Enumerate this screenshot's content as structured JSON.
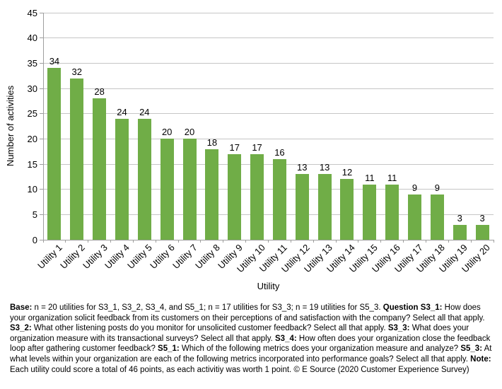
{
  "chart_data": {
    "type": "bar",
    "title": "",
    "categories": [
      "Utility 1",
      "Utility 2",
      "Utility 3",
      "Utility 4",
      "Utility 5",
      "Utility 6",
      "Utility 7",
      "Utility 8",
      "Utility 9",
      "Utility 10",
      "Utility 11",
      "Utility 12",
      "Utility 13",
      "Utility 14",
      "Utility 15",
      "Utility 16",
      "Utility 17",
      "Utility 18",
      "Utility 19",
      "Utility 20"
    ],
    "values": [
      34,
      32,
      28,
      24,
      24,
      20,
      20,
      18,
      17,
      17,
      16,
      13,
      13,
      12,
      11,
      11,
      9,
      9,
      3,
      3
    ],
    "xlabel": "Utility",
    "ylabel": "Number of activities",
    "ylim": [
      0,
      45
    ],
    "ytick_step": 5,
    "grid": true,
    "legend": "none",
    "data_labels": true
  },
  "colors": {
    "bar": "#70AD47",
    "gridline": "#C6C6C6",
    "axis": "#9E9E9E",
    "text": "#000000",
    "background": "#FFFFFF"
  },
  "footnote": {
    "segments": [
      {
        "bold": true,
        "text": "Base:"
      },
      {
        "bold": false,
        "text": " n = 20 utilities for S3_1, S3_2, S3_4, and S5_1; n = 17 utilities for S3_3; n = 19 utilities for S5_3. "
      },
      {
        "bold": true,
        "text": "Question S3_1:"
      },
      {
        "bold": false,
        "text": " How does your organization solicit feedback from its customers on their perceptions of and satisfaction with the company? Select all that apply. "
      },
      {
        "bold": true,
        "text": "S3_2:"
      },
      {
        "bold": false,
        "text": " What other listening posts do you monitor for unsolicited customer feedback? Select all that apply. "
      },
      {
        "bold": true,
        "text": "S3_3:"
      },
      {
        "bold": false,
        "text": " What does your organization measure with its transactional surveys? Select all that apply. "
      },
      {
        "bold": true,
        "text": "S3_4:"
      },
      {
        "bold": false,
        "text": " How often does your organization close the feedback loop after gathering customer feedback? "
      },
      {
        "bold": true,
        "text": "S5_1:"
      },
      {
        "bold": false,
        "text": " Which of the following metrics does your organization measure and analyze? "
      },
      {
        "bold": true,
        "text": "S5_3:"
      },
      {
        "bold": false,
        "text": " At what levels within your organization are each of the following metrics incorporated into performance goals? Select all that apply. "
      },
      {
        "bold": true,
        "text": "Note:"
      },
      {
        "bold": false,
        "text": " Each utility could score a total of 46 points, as each activitiy was worth 1 point. © E Source (2020 Customer Experience Survey)"
      }
    ]
  }
}
